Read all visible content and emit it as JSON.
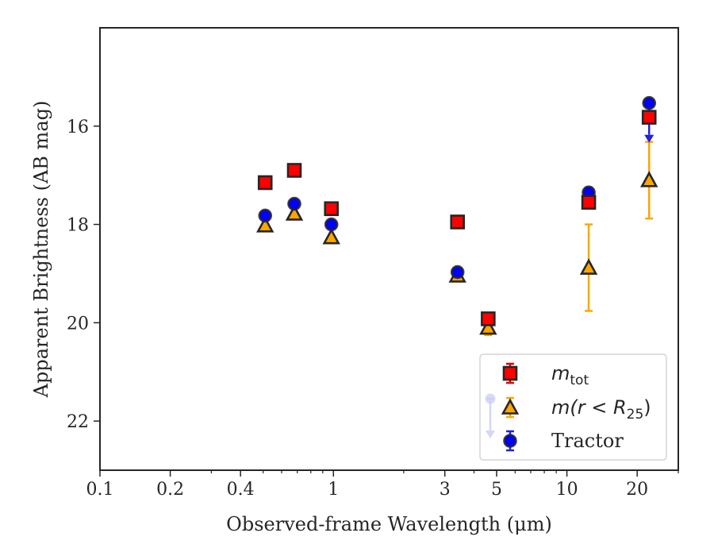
{
  "chart_data": {
    "type": "scatter",
    "xlabel": "Observed-frame Wavelength (μm)",
    "ylabel": "Apparent Brightness (AB mag)",
    "x_scale": "log",
    "y_inverted": true,
    "xlim": [
      0.1,
      30
    ],
    "ylim": [
      23,
      14
    ],
    "x_ticks": [
      0.1,
      0.2,
      0.4,
      1,
      3,
      5,
      10,
      20
    ],
    "x_tick_labels": [
      "0.1",
      "0.2",
      "0.4",
      "1",
      "3",
      "5",
      "10",
      "20"
    ],
    "y_ticks": [
      16,
      18,
      20,
      22
    ],
    "y_tick_labels": [
      "16",
      "18",
      "20",
      "22"
    ],
    "grid": false,
    "legend_position": "lower-right",
    "series": [
      {
        "name": "m_tot",
        "label_main": "m",
        "label_sub": "tot",
        "marker": "square",
        "color": "#ff0000",
        "edge_color": "#262626",
        "error_color": "#e00000",
        "points": [
          {
            "x": 0.51,
            "y": 17.15
          },
          {
            "x": 0.68,
            "y": 16.9
          },
          {
            "x": 0.98,
            "y": 17.68
          },
          {
            "x": 3.4,
            "y": 17.95
          },
          {
            "x": 4.6,
            "y": 19.92,
            "err": 0.12
          },
          {
            "x": 12.4,
            "y": 17.55
          },
          {
            "x": 22.5,
            "y": 15.82
          }
        ]
      },
      {
        "name": "m(r < R25)",
        "label_main": "m(r < R",
        "label_sub": "25",
        "label_tail": ")",
        "marker": "triangle",
        "color": "#ffa500",
        "edge_color": "#262626",
        "error_color": "#ffa500",
        "points": [
          {
            "x": 0.51,
            "y": 18.02
          },
          {
            "x": 0.68,
            "y": 17.78
          },
          {
            "x": 0.98,
            "y": 18.26
          },
          {
            "x": 3.4,
            "y": 19.04
          },
          {
            "x": 4.6,
            "y": 20.1,
            "err": 0.15
          },
          {
            "x": 12.4,
            "y": 18.88,
            "err": 0.88
          },
          {
            "x": 22.5,
            "y": 17.1,
            "err": 0.78
          }
        ]
      },
      {
        "name": "Tractor",
        "label_main": "Tractor",
        "marker": "circle",
        "color": "#0000ff",
        "edge_color": "#262626",
        "error_color": "#2222dd",
        "points": [
          {
            "x": 0.51,
            "y": 17.82
          },
          {
            "x": 0.68,
            "y": 17.58
          },
          {
            "x": 0.98,
            "y": 18.0
          },
          {
            "x": 3.4,
            "y": 18.97
          },
          {
            "x": 12.4,
            "y": 17.35,
            "err": 0.1
          },
          {
            "x": 22.5,
            "y": 15.53,
            "upper_limit": true
          }
        ]
      }
    ]
  }
}
